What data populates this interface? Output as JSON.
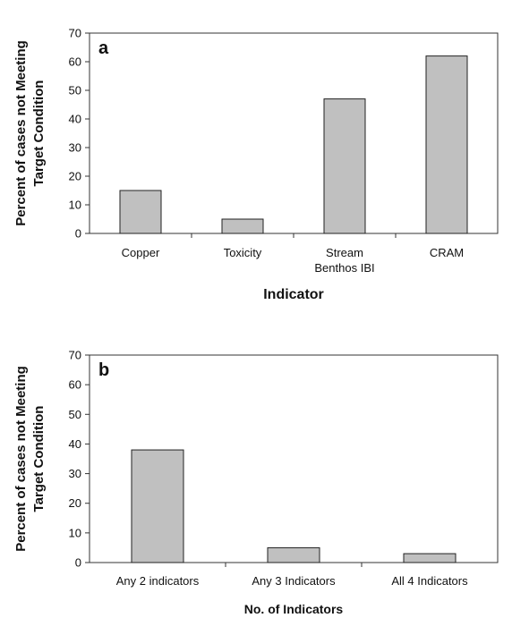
{
  "chart_data": [
    {
      "type": "bar",
      "panel_label": "a",
      "categories": [
        "Copper",
        "Toxicity",
        "Stream Benthos IBI",
        "CRAM"
      ],
      "category_lines": [
        [
          "Copper"
        ],
        [
          "Toxicity"
        ],
        [
          "Stream",
          "Benthos IBI"
        ],
        [
          "CRAM"
        ]
      ],
      "values": [
        15,
        5,
        47,
        62
      ],
      "xlabel": "Indicator",
      "ylabel": [
        "Percent of cases not Meeting",
        "Target Condition"
      ],
      "ylim": [
        0,
        70
      ],
      "yticks": [
        0,
        10,
        20,
        30,
        40,
        50,
        60,
        70
      ],
      "grid": false,
      "bar_color": "#c0c0c0"
    },
    {
      "type": "bar",
      "panel_label": "b",
      "categories": [
        "Any 2 indicators",
        "Any 3 Indicators",
        "All 4 Indicators"
      ],
      "category_lines": [
        [
          "Any 2 indicators"
        ],
        [
          "Any 3 Indicators"
        ],
        [
          "All 4 Indicators"
        ]
      ],
      "values": [
        38,
        5,
        3
      ],
      "xlabel": "No. of Indicators",
      "ylabel": [
        "Percent of cases not Meeting",
        "Target Condition"
      ],
      "ylim": [
        0,
        70
      ],
      "yticks": [
        0,
        10,
        20,
        30,
        40,
        50,
        60,
        70
      ],
      "grid": false,
      "bar_color": "#c0c0c0"
    }
  ]
}
